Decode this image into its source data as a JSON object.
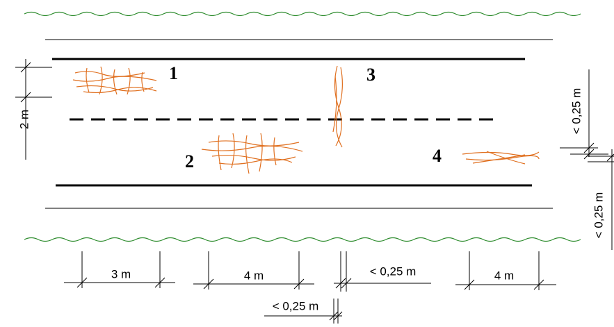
{
  "labels": {
    "damage_1": "1",
    "damage_2": "2",
    "damage_3": "3",
    "damage_4": "4"
  },
  "dimensions": {
    "lane_offset": "2 m",
    "patch_1_length": "3 m",
    "patch_2_length": "4 m",
    "crack_width": "< 0,25 m",
    "patch_4_length": "4 m",
    "crack_gap": "< 0,25 m",
    "patch_4_width": "< 0,25 m",
    "patch_4_offset": "< 0,25 m"
  }
}
